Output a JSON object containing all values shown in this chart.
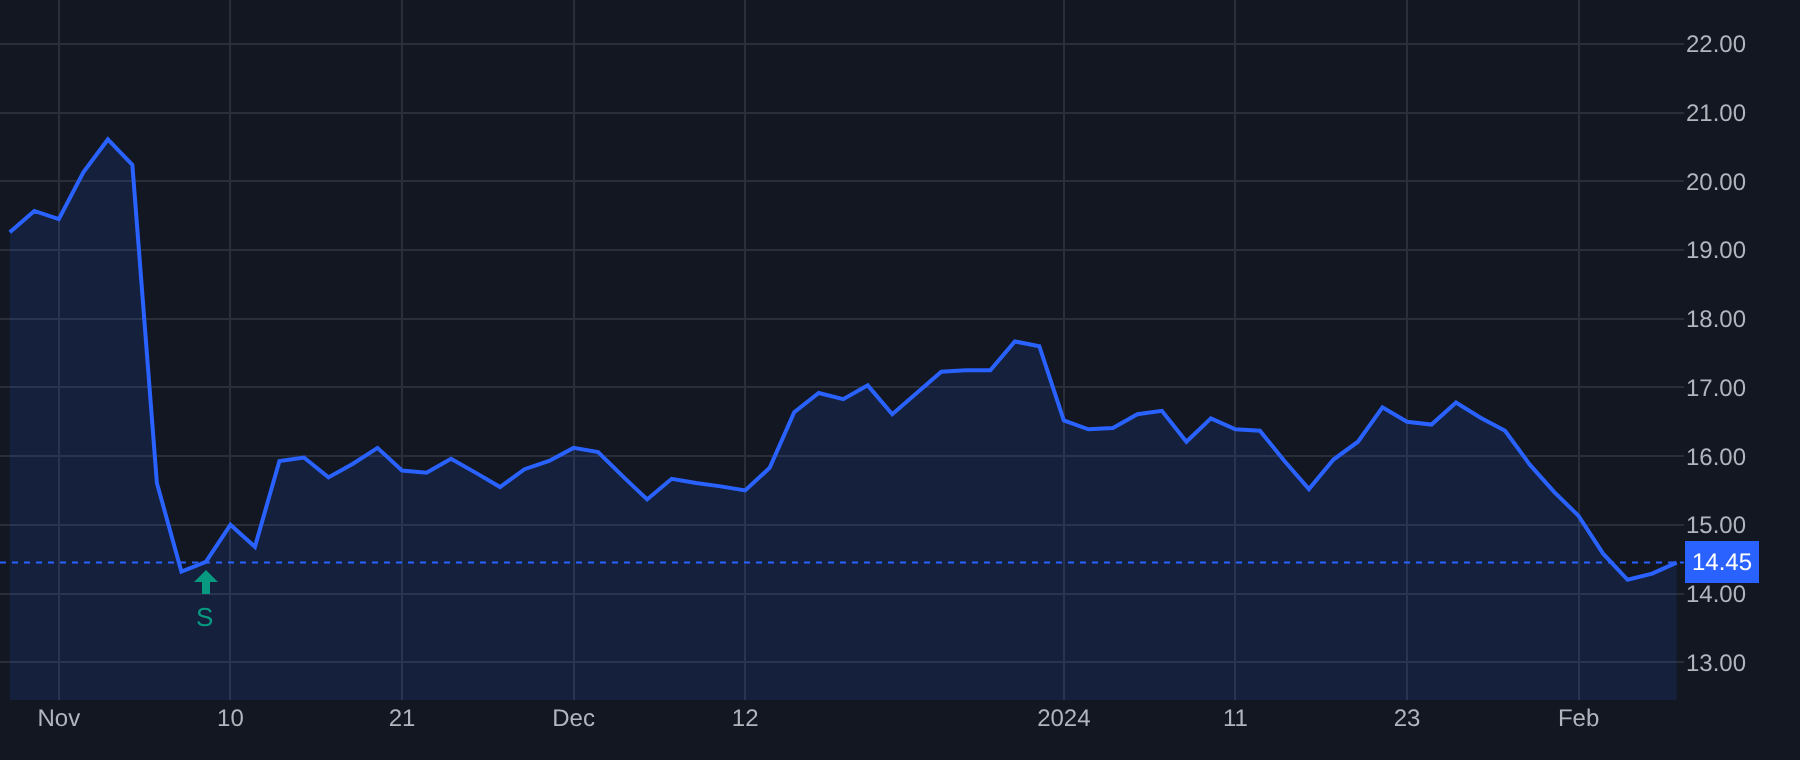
{
  "chart_data": {
    "type": "area",
    "categories": [
      null,
      null,
      "Nov",
      null,
      null,
      null,
      null,
      null,
      null,
      "10",
      null,
      null,
      null,
      null,
      null,
      null,
      "21",
      null,
      null,
      null,
      null,
      null,
      null,
      "Dec",
      null,
      null,
      null,
      null,
      null,
      null,
      "12",
      null,
      null,
      null,
      null,
      null,
      null,
      null,
      null,
      null,
      null,
      null,
      null,
      "2024",
      null,
      null,
      null,
      null,
      null,
      null,
      "11",
      null,
      null,
      null,
      null,
      null,
      null,
      "23",
      null,
      null,
      null,
      null,
      null,
      null,
      "Feb",
      null,
      null,
      null,
      null
    ],
    "series": [
      {
        "color": "#2962ff",
        "values": [
          19.26,
          19.57,
          19.45,
          20.13,
          20.61,
          20.24,
          15.61,
          14.32,
          14.46,
          15.0,
          14.68,
          15.93,
          15.98,
          15.69,
          15.89,
          16.12,
          15.79,
          15.76,
          15.96,
          15.76,
          15.55,
          15.81,
          15.93,
          16.12,
          16.06,
          15.71,
          15.37,
          15.67,
          15.61,
          15.56,
          15.5,
          15.83,
          16.64,
          16.92,
          16.83,
          17.03,
          16.61,
          16.92,
          17.23,
          17.25,
          17.25,
          17.67,
          17.6,
          16.52,
          16.39,
          16.41,
          16.61,
          16.66,
          16.21,
          16.55,
          16.39,
          16.37,
          15.93,
          15.52,
          15.95,
          16.21,
          16.71,
          16.5,
          16.46,
          16.78,
          16.56,
          16.37,
          15.88,
          15.48,
          15.13,
          14.58,
          14.2,
          14.29,
          14.45
        ]
      }
    ],
    "ylim": [
      12.45,
      22.64
    ],
    "yticks": [
      {
        "value": 13,
        "label": "13.00"
      },
      {
        "value": 14,
        "label": "14.00"
      },
      {
        "value": 15,
        "label": "15.00"
      },
      {
        "value": 16,
        "label": "16.00"
      },
      {
        "value": 17,
        "label": "17.00"
      },
      {
        "value": 18,
        "label": "18.00"
      },
      {
        "value": 19,
        "label": "19.00"
      },
      {
        "value": 20,
        "label": "20.00"
      },
      {
        "value": 21,
        "label": "21.00"
      },
      {
        "value": 22,
        "label": "22.00"
      }
    ],
    "grid": true,
    "ref_lines": [
      {
        "axis": "y",
        "value": 14.45,
        "label": "14.45",
        "color": "#2962ff",
        "line_style": "dotted"
      }
    ],
    "annotations": [
      {
        "text": "S",
        "y": 14.46
      }
    ]
  }
}
